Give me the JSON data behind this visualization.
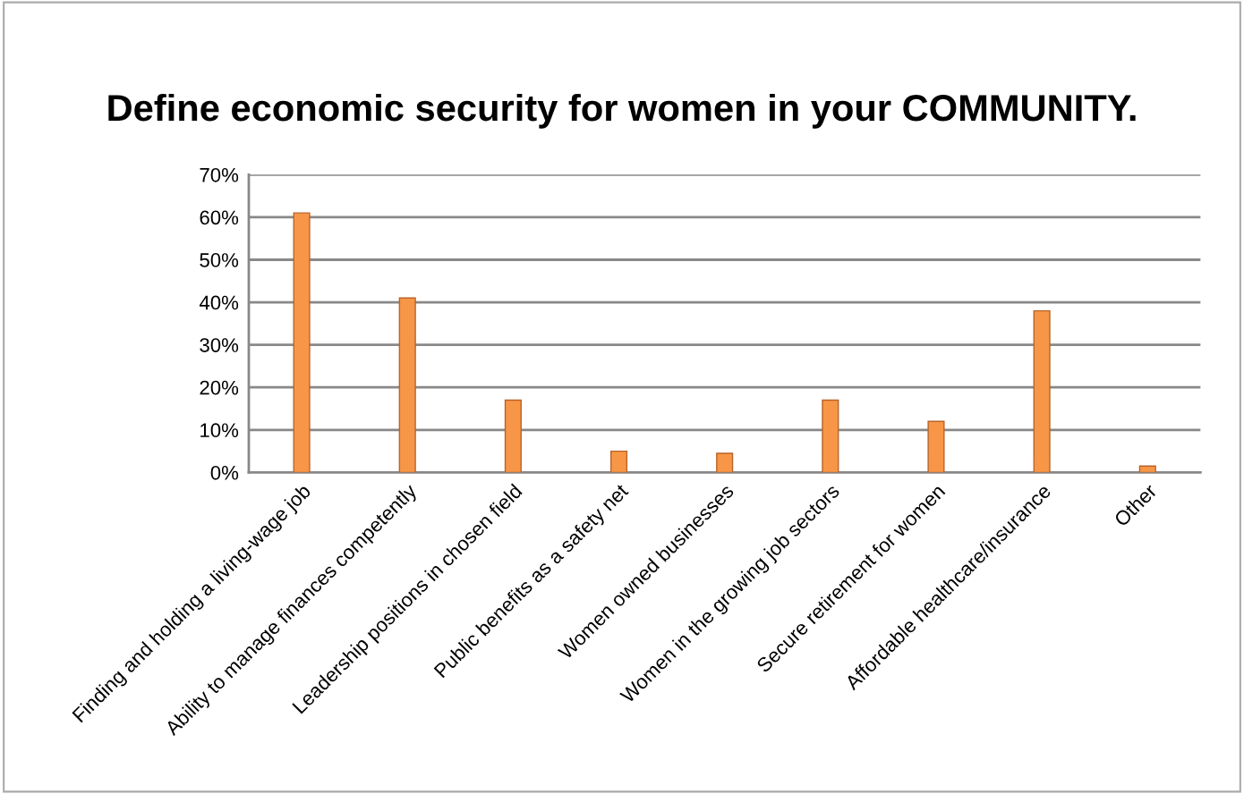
{
  "chart_data": {
    "type": "bar",
    "title": "Define economic security for women in your COMMUNITY.",
    "categories": [
      "Finding and holding a living-wage job",
      "Ability to manage finances competently",
      "Leadership positions in chosen field",
      "Public benefits as a safety net",
      "Women owned businesses",
      "Women in the growing job sectors",
      "Secure retirement for women",
      "Affordable healthcare/insurance",
      "Other"
    ],
    "values": [
      61,
      41,
      17,
      5,
      4.5,
      17,
      12,
      38,
      1.5
    ],
    "color": "#f79646",
    "ylim": [
      0,
      70
    ],
    "yticks": [
      {
        "value": 0,
        "label": "0%"
      },
      {
        "value": 10,
        "label": "10%"
      },
      {
        "value": 20,
        "label": "20%"
      },
      {
        "value": 30,
        "label": "30%"
      },
      {
        "value": 40,
        "label": "40%"
      },
      {
        "value": 50,
        "label": "50%"
      },
      {
        "value": 60,
        "label": "60%"
      },
      {
        "value": 70,
        "label": "70%"
      }
    ],
    "grid": "y",
    "legend": false
  }
}
